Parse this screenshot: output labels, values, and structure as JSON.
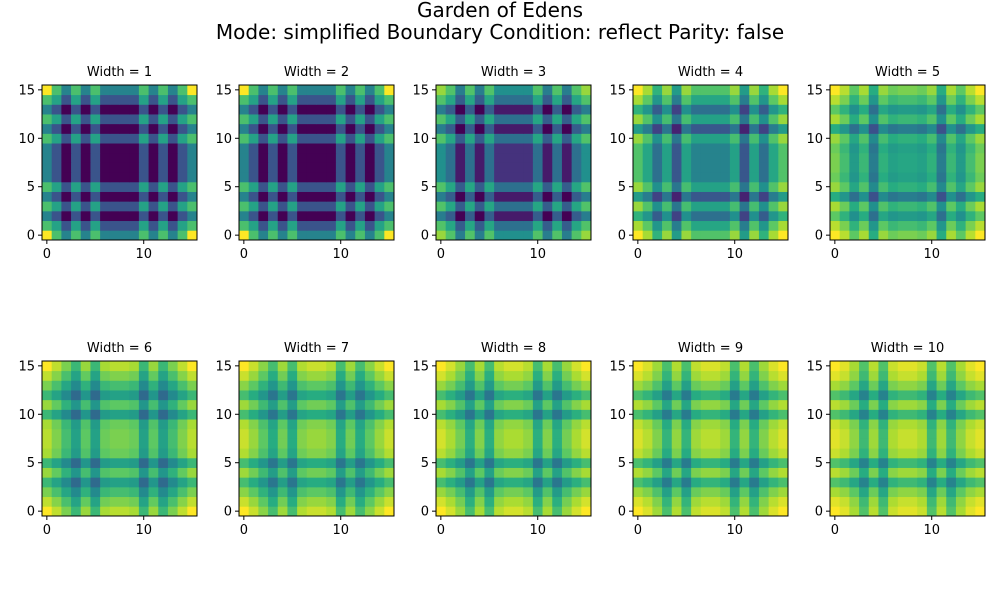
{
  "figure": {
    "title_line1": "Garden of Edens",
    "title_line2": "Mode: simplified   Boundary Condition: reflect   Parity: false"
  },
  "chart_data": {
    "type": "heatmap",
    "colormap": "viridis",
    "grid_size": 16,
    "xlim": [
      -0.5,
      15.5
    ],
    "ylim": [
      -0.5,
      15.5
    ],
    "origin": "lower",
    "x_ticks": [
      0,
      10
    ],
    "y_ticks": [
      0,
      5,
      10,
      15
    ],
    "panels": [
      {
        "title": "Width = 1",
        "row_values": [
          0.0,
          0.0,
          0.0,
          0.0,
          0.72,
          1.0
        ],
        "col_values": [
          0.0,
          0.0,
          0.0,
          0.0,
          0.72,
          1.0
        ],
        "row_profile_note": "bands"
      },
      {
        "title": "Width = 2"
      },
      {
        "title": "Width = 3"
      },
      {
        "title": "Width = 4"
      },
      {
        "title": "Width = 5"
      },
      {
        "title": "Width = 6"
      },
      {
        "title": "Width = 7"
      },
      {
        "title": "Width = 8"
      },
      {
        "title": "Width = 9"
      },
      {
        "title": "Width = 10"
      }
    ],
    "profiles": {
      "p1": [
        1,
        0.58,
        0,
        0.58,
        0,
        0.58,
        0,
        0,
        0,
        0,
        0.58,
        0,
        0.58,
        0,
        0.58,
        1
      ],
      "p2": [
        1,
        0.58,
        0,
        0.58,
        0,
        0.58,
        0,
        0,
        0,
        0,
        0.58,
        0,
        0.58,
        0,
        0.58,
        1
      ],
      "p3": [
        0.85,
        0.6,
        0,
        0.6,
        0,
        0.6,
        0.15,
        0.15,
        0.15,
        0.15,
        0.6,
        0,
        0.6,
        0,
        0.6,
        0.85
      ],
      "p4": [
        1,
        0.75,
        0.3,
        0.7,
        0.1,
        0.7,
        0.45,
        0.45,
        0.45,
        0.45,
        0.7,
        0.1,
        0.7,
        0.3,
        0.75,
        1
      ],
      "p5": [
        1,
        0.8,
        0.5,
        0.75,
        0.25,
        0.7,
        0.55,
        0.6,
        0.6,
        0.55,
        0.7,
        0.25,
        0.75,
        0.5,
        0.8,
        1
      ],
      "p6": [
        1,
        0.82,
        0.6,
        0.35,
        0.7,
        0.35,
        0.75,
        0.8,
        0.8,
        0.75,
        0.35,
        0.7,
        0.35,
        0.6,
        0.82,
        1
      ],
      "p7": [
        1,
        0.85,
        0.65,
        0.4,
        0.72,
        0.4,
        0.78,
        0.85,
        0.85,
        0.78,
        0.4,
        0.72,
        0.4,
        0.65,
        0.85,
        1
      ],
      "p8": [
        1,
        0.88,
        0.7,
        0.4,
        0.75,
        0.4,
        0.8,
        0.88,
        0.88,
        0.8,
        0.4,
        0.75,
        0.4,
        0.7,
        0.88,
        1
      ],
      "p9": [
        1,
        0.9,
        0.72,
        0.42,
        0.78,
        0.42,
        0.82,
        0.9,
        0.9,
        0.82,
        0.42,
        0.78,
        0.42,
        0.72,
        0.9,
        1
      ],
      "p10": [
        1,
        0.92,
        0.75,
        0.45,
        0.8,
        0.45,
        0.85,
        0.92,
        0.92,
        0.85,
        0.45,
        0.8,
        0.45,
        0.75,
        0.92,
        1
      ]
    }
  }
}
